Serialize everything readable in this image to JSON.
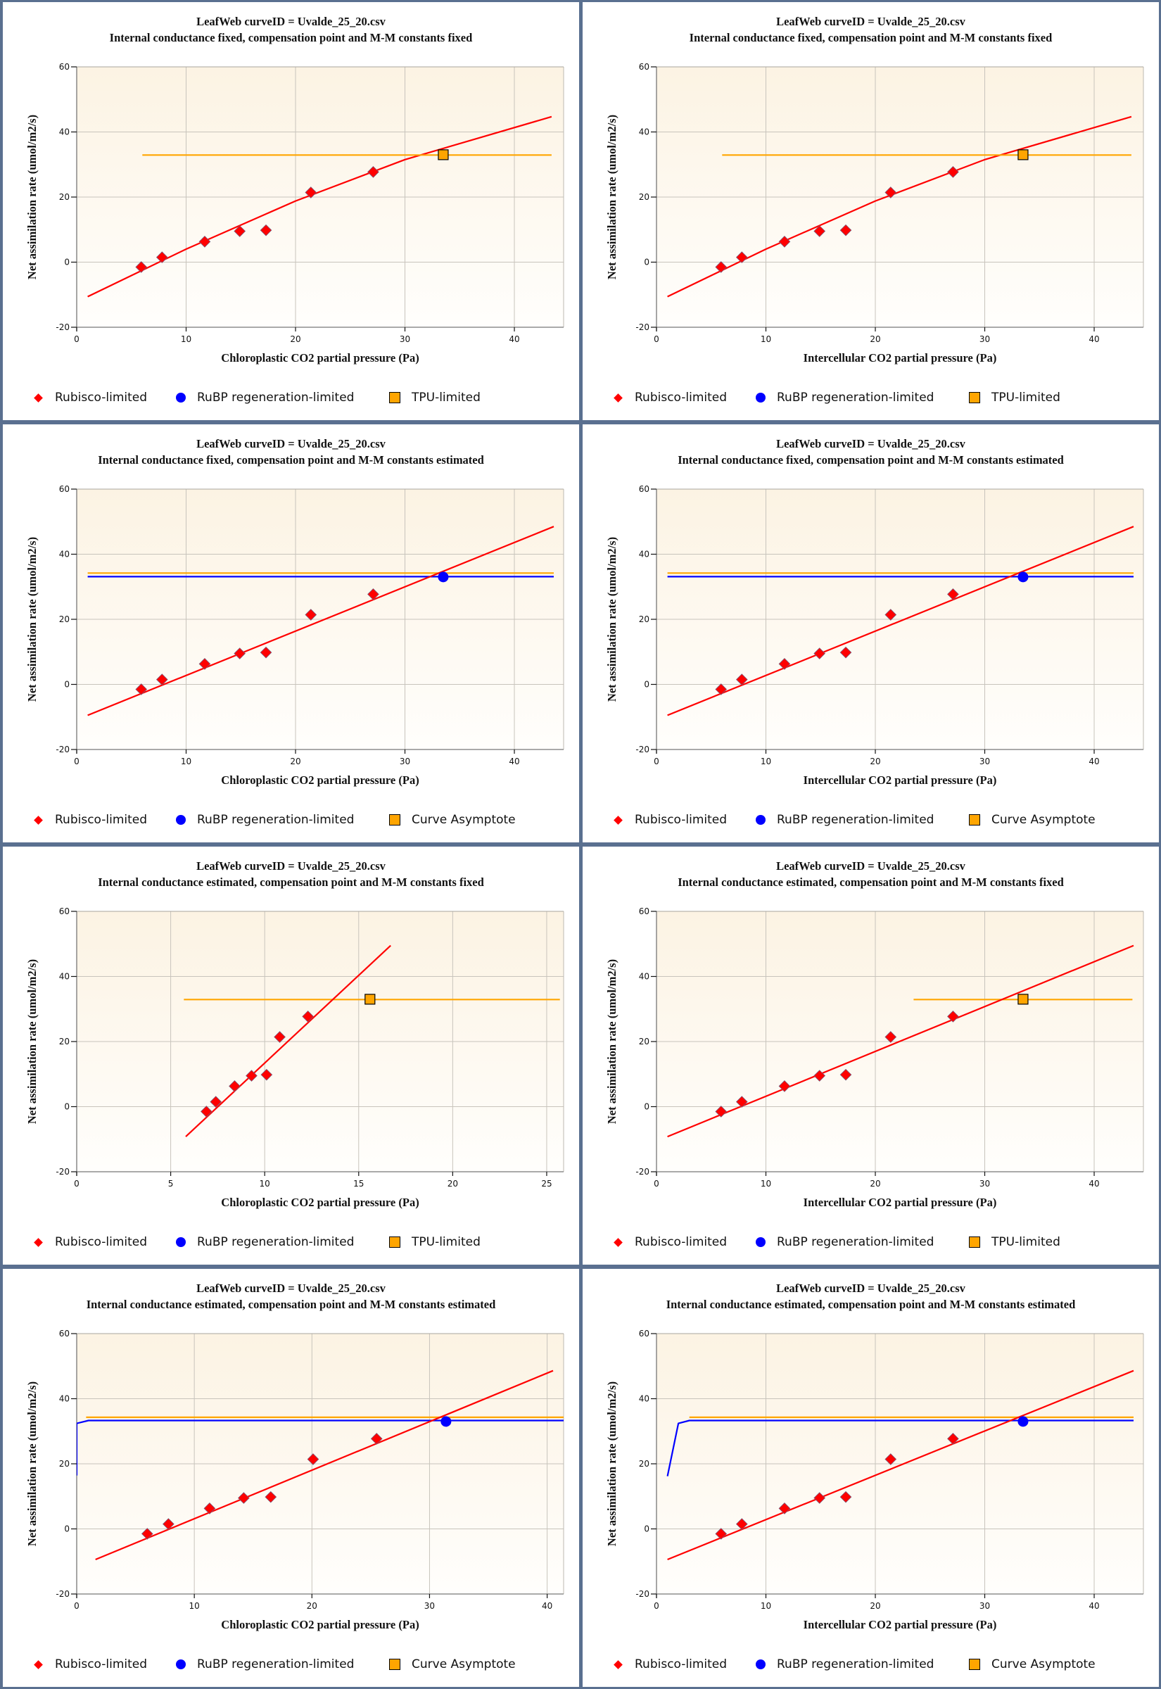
{
  "colors": {
    "rubisco": "#ff0000",
    "rubp": "#0000ff",
    "tpu": "#ffa500",
    "frame": "#5a7090",
    "plot_bg_top": "#fcf3e3",
    "plot_bg_bottom": "#fffefc",
    "grid": "#c8c4bc"
  },
  "chart_data": [
    {
      "type": "scatter",
      "title": "LeafWeb curveID = Uvalde_25_20.csv",
      "subtitle": "Internal conductance fixed, compensation point and M-M constants fixed",
      "xlabel": "Chloroplastic CO2 partial pressure (Pa)",
      "ylabel": "Net assimilation rate (umol/m2/s)",
      "xlim": [
        0,
        44.5
      ],
      "ylim": [
        -20,
        60
      ],
      "xticks": [
        0,
        10,
        20,
        30,
        40
      ],
      "yticks": [
        -20,
        0,
        20,
        40,
        60
      ],
      "grid": true,
      "legend": [
        {
          "marker": "diamond",
          "label": "Rubisco-limited"
        },
        {
          "marker": "circle",
          "label": "RuBP regeneration-limited"
        },
        {
          "marker": "square",
          "label": "TPU-limited"
        }
      ],
      "series": [
        {
          "name": "Rubisco-limited points",
          "kind": "points",
          "marker": "diamond",
          "x": [
            5.9,
            7.8,
            11.7,
            14.9,
            17.3,
            21.4,
            27.1
          ],
          "y": [
            -1.5,
            1.5,
            6.3,
            9.5,
            9.8,
            21.4,
            27.7
          ]
        },
        {
          "name": "TPU-limited points",
          "kind": "points",
          "marker": "square",
          "x": [
            33.5
          ],
          "y": [
            33.0
          ]
        },
        {
          "name": "Rubisco-limited curve",
          "kind": "line",
          "color": "rubisco",
          "x": [
            1.0,
            10.0,
            20.0,
            30.0,
            43.4
          ],
          "y": [
            -10.6,
            4.0,
            18.8,
            31.5,
            44.7
          ]
        },
        {
          "name": "TPU-limited line",
          "kind": "line",
          "color": "tpu",
          "x": [
            6.0,
            43.4
          ],
          "y": [
            32.9,
            32.9
          ]
        }
      ]
    },
    {
      "type": "scatter",
      "title": "LeafWeb curveID = Uvalde_25_20.csv",
      "subtitle": "Internal conductance fixed, compensation point and M-M constants fixed",
      "xlabel": "Intercellular CO2 partial pressure (Pa)",
      "ylabel": "Net assimilation rate (umol/m2/s)",
      "xlim": [
        0,
        44.5
      ],
      "ylim": [
        -20,
        60
      ],
      "xticks": [
        0,
        10,
        20,
        30,
        40
      ],
      "yticks": [
        -20,
        0,
        20,
        40,
        60
      ],
      "grid": true,
      "legend": [
        {
          "marker": "diamond",
          "label": "Rubisco-limited"
        },
        {
          "marker": "circle",
          "label": "RuBP regeneration-limited"
        },
        {
          "marker": "square",
          "label": "TPU-limited"
        }
      ],
      "series": [
        {
          "name": "Rubisco-limited points",
          "kind": "points",
          "marker": "diamond",
          "x": [
            5.9,
            7.8,
            11.7,
            14.9,
            17.3,
            21.4,
            27.1
          ],
          "y": [
            -1.5,
            1.5,
            6.3,
            9.5,
            9.8,
            21.4,
            27.7
          ]
        },
        {
          "name": "TPU-limited points",
          "kind": "points",
          "marker": "square",
          "x": [
            33.5
          ],
          "y": [
            33.0
          ]
        },
        {
          "name": "Rubisco-limited curve",
          "kind": "line",
          "color": "rubisco",
          "x": [
            1.0,
            10.0,
            20.0,
            30.0,
            43.4
          ],
          "y": [
            -10.6,
            4.0,
            18.8,
            31.5,
            44.7
          ]
        },
        {
          "name": "TPU-limited line",
          "kind": "line",
          "color": "tpu",
          "x": [
            6.0,
            43.4
          ],
          "y": [
            32.9,
            32.9
          ]
        }
      ]
    },
    {
      "type": "scatter",
      "title": "LeafWeb curveID = Uvalde_25_20.csv",
      "subtitle": "Internal conductance fixed, compensation point and M-M constants estimated",
      "xlabel": "Chloroplastic CO2 partial pressure (Pa)",
      "ylabel": "Net assimilation rate (umol/m2/s)",
      "xlim": [
        0,
        44.5
      ],
      "ylim": [
        -20,
        60
      ],
      "xticks": [
        0,
        10,
        20,
        30,
        40
      ],
      "yticks": [
        -20,
        0,
        20,
        40,
        60
      ],
      "grid": true,
      "legend": [
        {
          "marker": "diamond",
          "label": "Rubisco-limited"
        },
        {
          "marker": "circle",
          "label": "RuBP regeneration-limited"
        },
        {
          "marker": "square",
          "label": "Curve Asymptote"
        }
      ],
      "series": [
        {
          "name": "Curve Asymptote line",
          "kind": "line",
          "color": "tpu",
          "x": [
            1.0,
            43.6
          ],
          "y": [
            34.2,
            34.2
          ]
        },
        {
          "name": "RuBP regeneration-limited line",
          "kind": "line",
          "color": "rubp",
          "x": [
            1.0,
            43.6
          ],
          "y": [
            33.1,
            33.1
          ]
        },
        {
          "name": "Rubisco-limited curve",
          "kind": "line",
          "color": "rubisco",
          "x": [
            1.0,
            43.6
          ],
          "y": [
            -9.5,
            48.5
          ]
        },
        {
          "name": "Rubisco-limited points",
          "kind": "points",
          "marker": "diamond",
          "x": [
            5.9,
            7.8,
            11.7,
            14.9,
            17.3,
            21.4,
            27.1
          ],
          "y": [
            -1.5,
            1.5,
            6.3,
            9.5,
            9.8,
            21.4,
            27.7
          ]
        },
        {
          "name": "RuBP regeneration-limited points",
          "kind": "points",
          "marker": "circle",
          "x": [
            33.5
          ],
          "y": [
            33.0
          ]
        }
      ]
    },
    {
      "type": "scatter",
      "title": "LeafWeb curveID = Uvalde_25_20.csv",
      "subtitle": "Internal conductance fixed, compensation point and M-M constants estimated",
      "xlabel": "Intercellular CO2 partial pressure (Pa)",
      "ylabel": "Net assimilation rate (umol/m2/s)",
      "xlim": [
        0,
        44.5
      ],
      "ylim": [
        -20,
        60
      ],
      "xticks": [
        0,
        10,
        20,
        30,
        40
      ],
      "yticks": [
        -20,
        0,
        20,
        40,
        60
      ],
      "grid": true,
      "legend": [
        {
          "marker": "diamond",
          "label": "Rubisco-limited"
        },
        {
          "marker": "circle",
          "label": "RuBP regeneration-limited"
        },
        {
          "marker": "square",
          "label": "Curve Asymptote"
        }
      ],
      "series": [
        {
          "name": "Curve Asymptote line",
          "kind": "line",
          "color": "tpu",
          "x": [
            1.0,
            43.6
          ],
          "y": [
            34.2,
            34.2
          ]
        },
        {
          "name": "RuBP regeneration-limited line",
          "kind": "line",
          "color": "rubp",
          "x": [
            1.0,
            43.6
          ],
          "y": [
            33.1,
            33.1
          ]
        },
        {
          "name": "Rubisco-limited curve",
          "kind": "line",
          "color": "rubisco",
          "x": [
            1.0,
            43.6
          ],
          "y": [
            -9.5,
            48.5
          ]
        },
        {
          "name": "Rubisco-limited points",
          "kind": "points",
          "marker": "diamond",
          "x": [
            5.9,
            7.8,
            11.7,
            14.9,
            17.3,
            21.4,
            27.1
          ],
          "y": [
            -1.5,
            1.5,
            6.3,
            9.5,
            9.8,
            21.4,
            27.7
          ]
        },
        {
          "name": "RuBP regeneration-limited points",
          "kind": "points",
          "marker": "circle",
          "x": [
            33.5
          ],
          "y": [
            33.0
          ]
        }
      ]
    },
    {
      "type": "scatter",
      "title": "LeafWeb curveID = Uvalde_25_20.csv",
      "subtitle": "Internal conductance estimated, compensation point and M-M constants fixed",
      "xlabel": "Chloroplastic CO2 partial pressure (Pa)",
      "ylabel": "Net assimilation rate (umol/m2/s)",
      "xlim": [
        0,
        25.9
      ],
      "ylim": [
        -20,
        60
      ],
      "xticks": [
        0,
        5,
        10,
        15,
        20,
        25
      ],
      "yticks": [
        -20,
        0,
        20,
        40,
        60
      ],
      "grid": true,
      "legend": [
        {
          "marker": "diamond",
          "label": "Rubisco-limited"
        },
        {
          "marker": "circle",
          "label": "RuBP regeneration-limited"
        },
        {
          "marker": "square",
          "label": "TPU-limited"
        }
      ],
      "series": [
        {
          "name": "TPU-limited line",
          "kind": "line",
          "color": "tpu",
          "x": [
            5.7,
            25.7
          ],
          "y": [
            32.9,
            32.9
          ]
        },
        {
          "name": "Rubisco-limited curve",
          "kind": "line",
          "color": "rubisco",
          "x": [
            5.8,
            16.7
          ],
          "y": [
            -9.2,
            49.5
          ]
        },
        {
          "name": "Rubisco-limited points",
          "kind": "points",
          "marker": "diamond",
          "x": [
            6.9,
            7.4,
            8.4,
            9.3,
            10.1,
            10.8,
            12.3
          ],
          "y": [
            -1.5,
            1.5,
            6.3,
            9.5,
            9.8,
            21.4,
            27.7
          ]
        },
        {
          "name": "TPU-limited points",
          "kind": "points",
          "marker": "square",
          "x": [
            15.6
          ],
          "y": [
            33.0
          ]
        }
      ]
    },
    {
      "type": "scatter",
      "title": "LeafWeb curveID = Uvalde_25_20.csv",
      "subtitle": "Internal conductance estimated, compensation point and M-M constants fixed",
      "xlabel": "Intercellular CO2 partial pressure (Pa)",
      "ylabel": "Net assimilation rate (umol/m2/s)",
      "xlim": [
        0,
        44.5
      ],
      "ylim": [
        -20,
        60
      ],
      "xticks": [
        0,
        10,
        20,
        30,
        40
      ],
      "yticks": [
        -20,
        0,
        20,
        40,
        60
      ],
      "grid": true,
      "legend": [
        {
          "marker": "diamond",
          "label": "Rubisco-limited"
        },
        {
          "marker": "circle",
          "label": "RuBP regeneration-limited"
        },
        {
          "marker": "square",
          "label": "TPU-limited"
        }
      ],
      "series": [
        {
          "name": "TPU-limited line",
          "kind": "line",
          "color": "tpu",
          "x": [
            23.5,
            43.5
          ],
          "y": [
            32.9,
            32.9
          ]
        },
        {
          "name": "Rubisco-limited curve",
          "kind": "line",
          "color": "rubisco",
          "x": [
            1.0,
            43.6
          ],
          "y": [
            -9.2,
            49.5
          ]
        },
        {
          "name": "Rubisco-limited points",
          "kind": "points",
          "marker": "diamond",
          "x": [
            5.9,
            7.8,
            11.7,
            14.9,
            17.3,
            21.4,
            27.1
          ],
          "y": [
            -1.5,
            1.5,
            6.3,
            9.5,
            9.8,
            21.4,
            27.7
          ]
        },
        {
          "name": "TPU-limited points",
          "kind": "points",
          "marker": "square",
          "x": [
            33.5
          ],
          "y": [
            33.0
          ]
        }
      ]
    },
    {
      "type": "scatter",
      "title": "LeafWeb curveID = Uvalde_25_20.csv",
      "subtitle": "Internal conductance estimated, compensation point and M-M constants estimated",
      "xlabel": "Chloroplastic CO2 partial pressure (Pa)",
      "ylabel": "Net assimilation rate (umol/m2/s)",
      "xlim": [
        0,
        41.4
      ],
      "ylim": [
        -20,
        60
      ],
      "xticks": [
        0,
        10,
        20,
        30,
        40
      ],
      "yticks": [
        -20,
        0,
        20,
        40,
        60
      ],
      "grid": true,
      "legend": [
        {
          "marker": "diamond",
          "label": "Rubisco-limited"
        },
        {
          "marker": "circle",
          "label": "RuBP regeneration-limited"
        },
        {
          "marker": "square",
          "label": "Curve Asymptote"
        }
      ],
      "series": [
        {
          "name": "Curve Asymptote line",
          "kind": "line",
          "color": "tpu",
          "x": [
            0.8,
            41.4
          ],
          "y": [
            34.3,
            34.3
          ]
        },
        {
          "name": "RuBP regeneration-limited line",
          "kind": "line",
          "color": "rubp",
          "x": [
            0.0,
            0.0,
            1.0,
            41.4
          ],
          "y": [
            16.4,
            32.4,
            33.3,
            33.3
          ]
        },
        {
          "name": "Rubisco-limited curve",
          "kind": "line",
          "color": "rubisco",
          "x": [
            1.6,
            40.5
          ],
          "y": [
            -9.4,
            48.6
          ]
        },
        {
          "name": "Rubisco-limited points",
          "kind": "points",
          "marker": "diamond",
          "x": [
            6.0,
            7.8,
            11.3,
            14.2,
            16.5,
            20.1,
            25.5
          ],
          "y": [
            -1.5,
            1.5,
            6.3,
            9.5,
            9.8,
            21.4,
            27.7
          ]
        },
        {
          "name": "RuBP regeneration-limited points",
          "kind": "points",
          "marker": "circle",
          "x": [
            31.4
          ],
          "y": [
            33.0
          ]
        }
      ]
    },
    {
      "type": "scatter",
      "title": "LeafWeb curveID = Uvalde_25_20.csv",
      "subtitle": "Internal conductance estimated, compensation point and M-M constants estimated",
      "xlabel": "Intercellular CO2 partial pressure (Pa)",
      "ylabel": "Net assimilation rate (umol/m2/s)",
      "xlim": [
        0,
        44.5
      ],
      "ylim": [
        -20,
        60
      ],
      "xticks": [
        0,
        10,
        20,
        30,
        40
      ],
      "yticks": [
        -20,
        0,
        20,
        40,
        60
      ],
      "grid": true,
      "legend": [
        {
          "marker": "diamond",
          "label": "Rubisco-limited"
        },
        {
          "marker": "circle",
          "label": "RuBP regeneration-limited"
        },
        {
          "marker": "square",
          "label": "Curve Asymptote"
        }
      ],
      "series": [
        {
          "name": "Curve Asymptote line",
          "kind": "line",
          "color": "tpu",
          "x": [
            3.0,
            43.6
          ],
          "y": [
            34.3,
            34.3
          ]
        },
        {
          "name": "RuBP regeneration-limited line",
          "kind": "line",
          "color": "rubp",
          "x": [
            1.0,
            2.0,
            3.0,
            43.6
          ],
          "y": [
            16.2,
            32.4,
            33.3,
            33.3
          ]
        },
        {
          "name": "Rubisco-limited curve",
          "kind": "line",
          "color": "rubisco",
          "x": [
            1.0,
            43.6
          ],
          "y": [
            -9.4,
            48.6
          ]
        },
        {
          "name": "Rubisco-limited points",
          "kind": "points",
          "marker": "diamond",
          "x": [
            5.9,
            7.8,
            11.7,
            14.9,
            17.3,
            21.4,
            27.1
          ],
          "y": [
            -1.5,
            1.5,
            6.3,
            9.5,
            9.8,
            21.4,
            27.7
          ]
        },
        {
          "name": "RuBP regeneration-limited points",
          "kind": "points",
          "marker": "circle",
          "x": [
            33.5
          ],
          "y": [
            33.0
          ]
        }
      ]
    }
  ]
}
